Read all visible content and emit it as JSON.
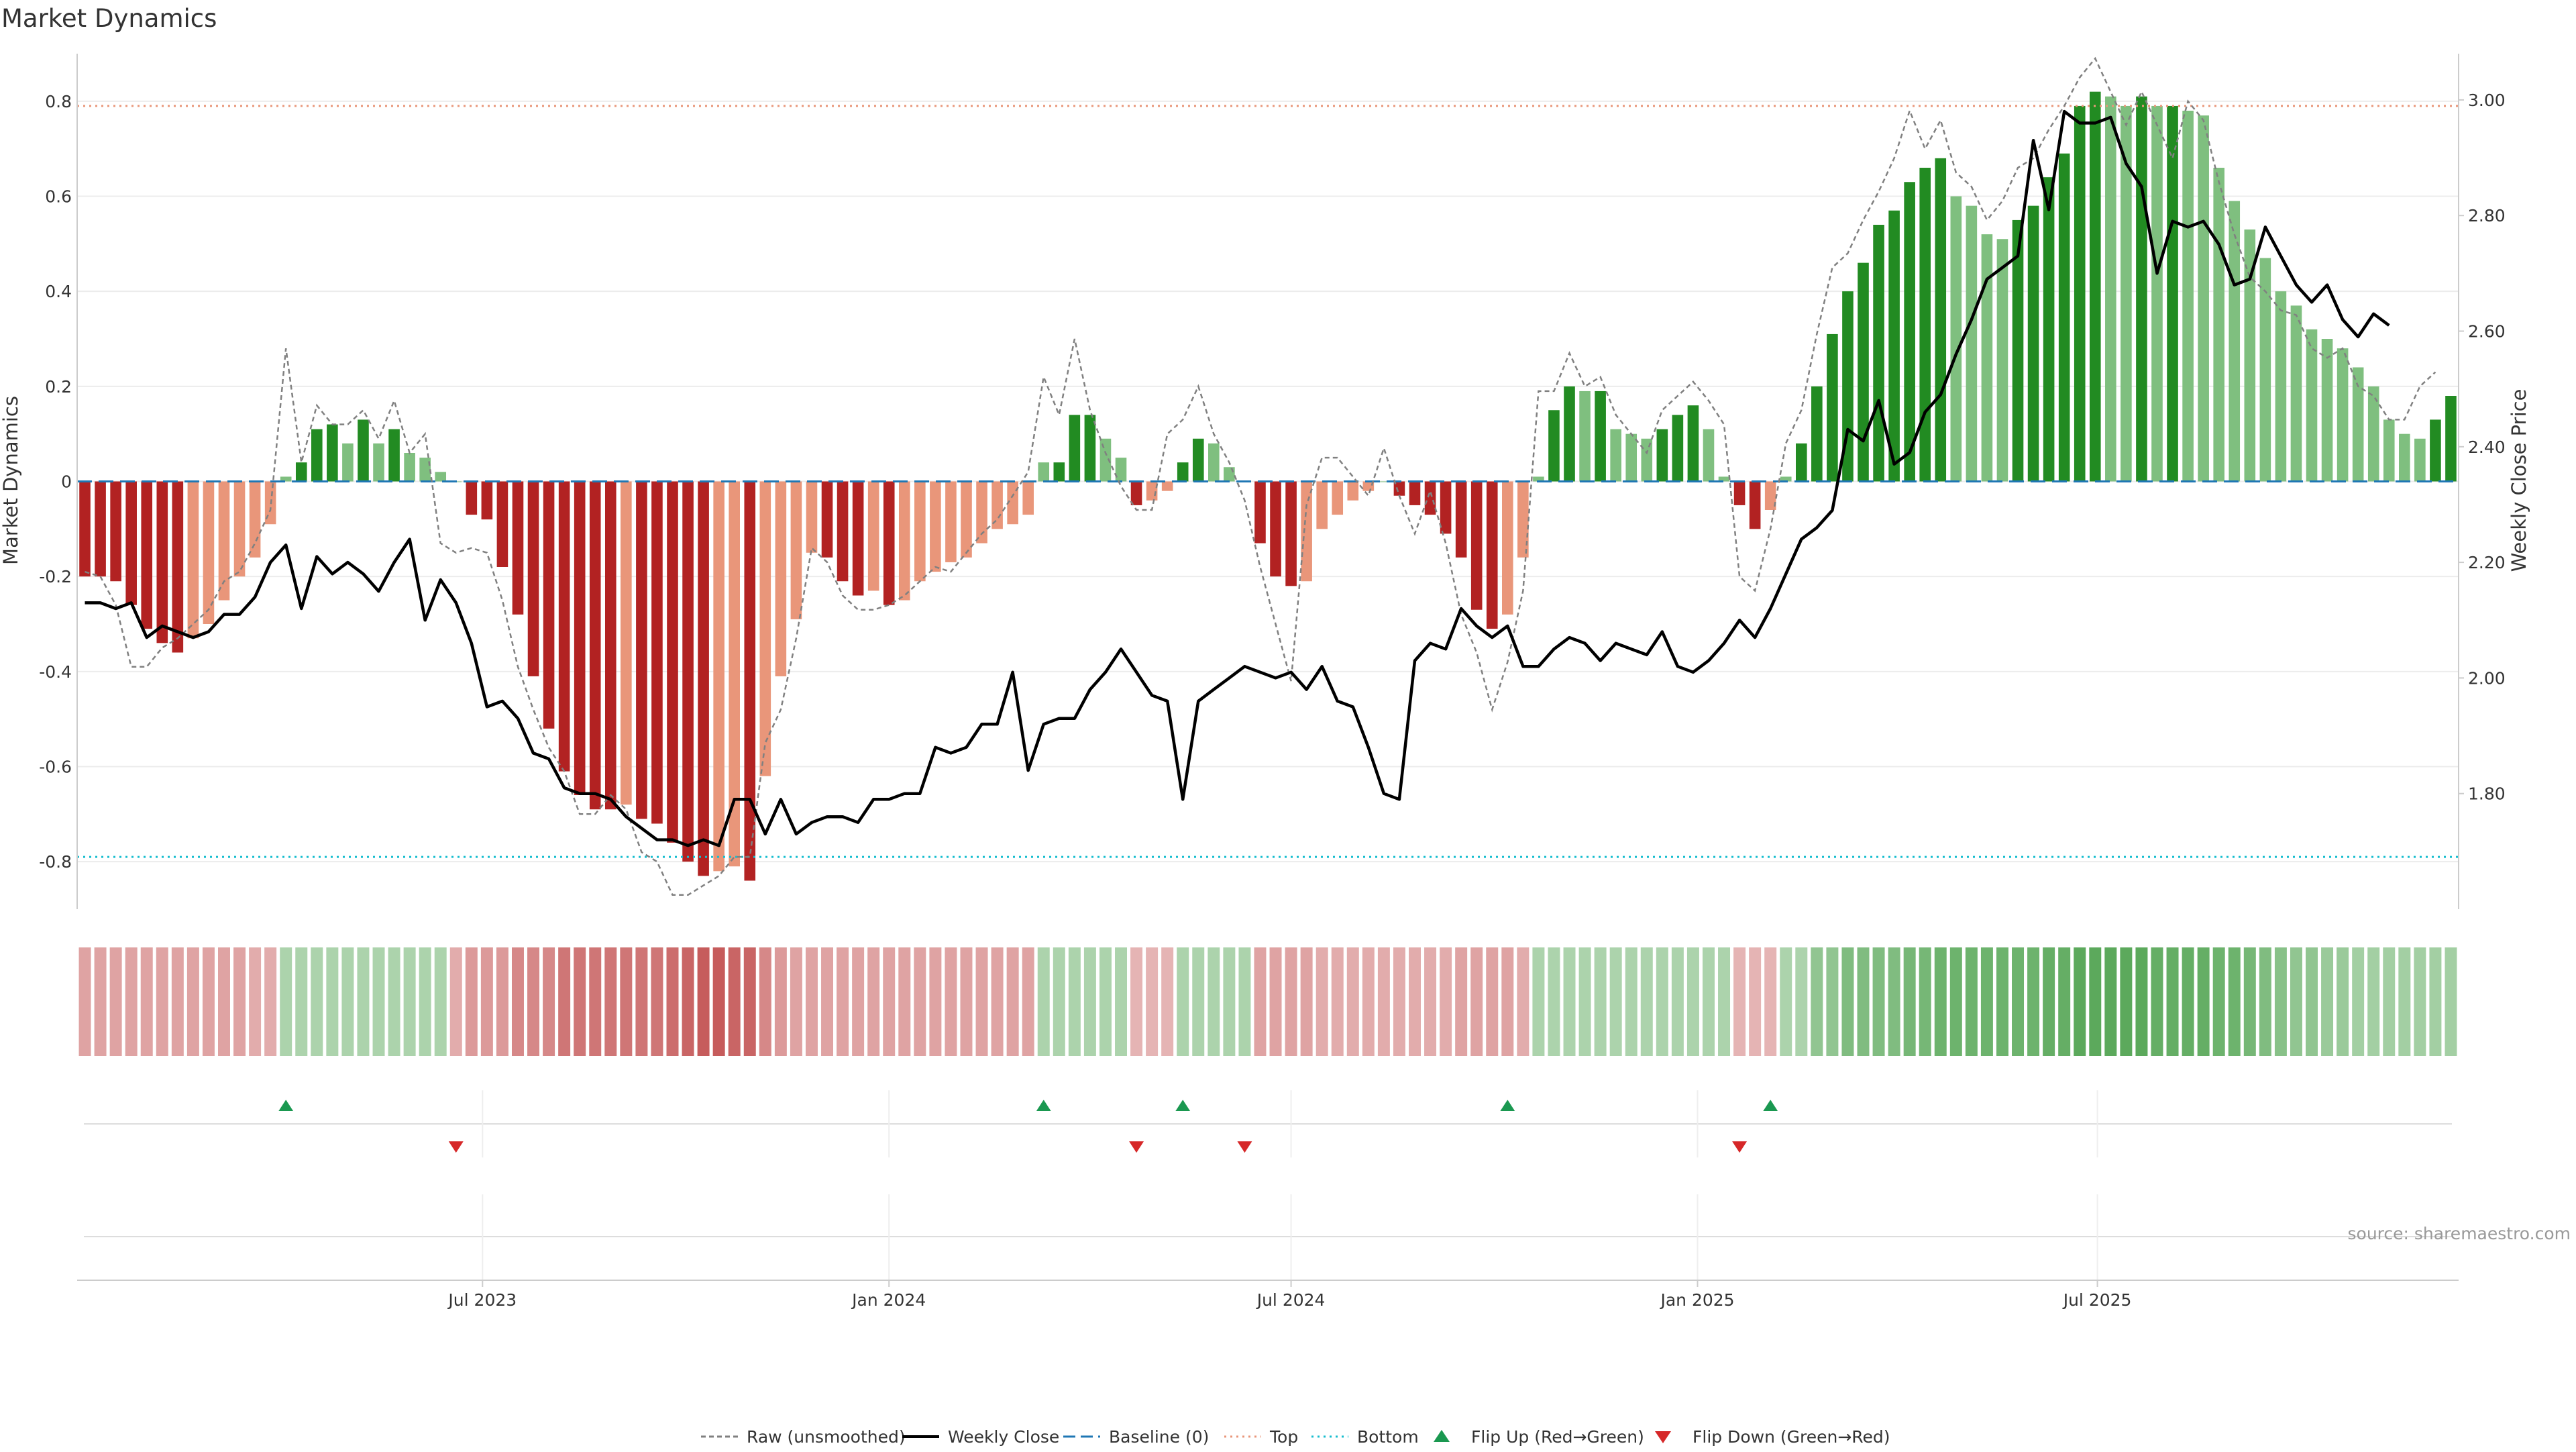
{
  "title": "Market Dynamics",
  "source_note": "source: sharemaestro.com",
  "left_axis_label": "Market Dynamics",
  "right_axis_label": "Weekly Close Price",
  "x_tick_labels": [
    "Jul 2023",
    "Jan 2024",
    "Jul 2024",
    "Jan 2025",
    "Jul 2025"
  ],
  "legend": [
    {
      "key": "raw",
      "label": "Raw (unsmoothed)"
    },
    {
      "key": "close",
      "label": "Weekly Close"
    },
    {
      "key": "baseline",
      "label": "Baseline (0)"
    },
    {
      "key": "top",
      "label": "Top"
    },
    {
      "key": "bottom",
      "label": "Bottom"
    },
    {
      "key": "flip_up",
      "label": "Flip Up (Red→Green)"
    },
    {
      "key": "flip_down",
      "label": "Flip Down (Green→Red)"
    }
  ],
  "colors": {
    "strong_green": "#228b22",
    "light_green": "#7fbf7f",
    "strong_red": "#b22222",
    "light_red": "#e9967a",
    "close_line": "#000000",
    "raw_line": "#808080",
    "baseline": "#1f77b4",
    "top": "#e9967a",
    "bottom": "#17becf",
    "flip_up": "#1a9850",
    "flip_down": "#d62728"
  },
  "chart_data": {
    "type": "bar",
    "x_start": "2023-01-02",
    "x_interval": "weekly",
    "ylim_left": [
      -0.9,
      0.9
    ],
    "left_ticks": [
      -0.8,
      -0.6,
      -0.4,
      -0.2,
      0,
      0.2,
      0.4,
      0.6,
      0.8
    ],
    "ylim_right": [
      1.6,
      3.08
    ],
    "right_ticks": [
      1.8,
      2.0,
      2.2,
      2.4,
      2.6,
      2.8,
      3.0
    ],
    "top_level": 0.79,
    "bottom_level": -0.79,
    "baseline": 0,
    "series": [
      {
        "name": "Market Dynamics",
        "values": [
          -0.2,
          -0.2,
          -0.21,
          -0.26,
          -0.31,
          -0.34,
          -0.36,
          -0.33,
          -0.3,
          -0.25,
          -0.2,
          -0.16,
          -0.09,
          0.01,
          0.04,
          0.11,
          0.12,
          0.08,
          0.13,
          0.08,
          0.11,
          0.06,
          0.05,
          0.02,
          0,
          -0.07,
          -0.08,
          -0.18,
          -0.28,
          -0.41,
          -0.52,
          -0.61,
          -0.66,
          -0.69,
          -0.69,
          -0.68,
          -0.71,
          -0.72,
          -0.76,
          -0.8,
          -0.83,
          -0.82,
          -0.81,
          -0.84,
          -0.62,
          -0.41,
          -0.29,
          -0.15,
          -0.16,
          -0.21,
          -0.24,
          -0.23,
          -0.26,
          -0.25,
          -0.21,
          -0.19,
          -0.17,
          -0.16,
          -0.13,
          -0.1,
          -0.09,
          -0.07,
          0.04,
          0.04,
          0.14,
          0.14,
          0.09,
          0.05,
          -0.05,
          -0.04,
          -0.02,
          0.04,
          0.09,
          0.08,
          0.03,
          0,
          -0.13,
          -0.2,
          -0.22,
          -0.21,
          -0.1,
          -0.07,
          -0.04,
          -0.02,
          0,
          -0.03,
          -0.05,
          -0.07,
          -0.11,
          -0.16,
          -0.27,
          -0.31,
          -0.28,
          -0.16,
          0.01,
          0.15,
          0.2,
          0.19,
          0.19,
          0.11,
          0.1,
          0.09,
          0.11,
          0.14,
          0.16,
          0.11,
          0.01,
          -0.05,
          -0.1,
          -0.06,
          0.01,
          0.08,
          0.2,
          0.31,
          0.4,
          0.46,
          0.54,
          0.57,
          0.63,
          0.66,
          0.68,
          0.6,
          0.58,
          0.52,
          0.51,
          0.55,
          0.58,
          0.64,
          0.69,
          0.79,
          0.82,
          0.81,
          0.79,
          0.81,
          0.79,
          0.79,
          0.78,
          0.77,
          0.66,
          0.59,
          0.53,
          0.47,
          0.4,
          0.37,
          0.32,
          0.3,
          0.28,
          0.24,
          0.2,
          0.13,
          0.1,
          0.09,
          0.13,
          0.18
        ]
      },
      {
        "name": "Raw (unsmoothed)",
        "values": [
          -0.19,
          -0.2,
          -0.26,
          -0.39,
          -0.39,
          -0.35,
          -0.33,
          -0.3,
          -0.27,
          -0.21,
          -0.19,
          -0.13,
          -0.06,
          0.28,
          0.04,
          0.16,
          0.12,
          0.12,
          0.15,
          0.09,
          0.17,
          0.06,
          0.1,
          -0.13,
          -0.15,
          -0.14,
          -0.15,
          -0.25,
          -0.39,
          -0.48,
          -0.56,
          -0.61,
          -0.7,
          -0.7,
          -0.66,
          -0.69,
          -0.78,
          -0.8,
          -0.87,
          -0.87,
          -0.85,
          -0.83,
          -0.79,
          -0.79,
          -0.55,
          -0.48,
          -0.33,
          -0.14,
          -0.17,
          -0.24,
          -0.27,
          -0.27,
          -0.26,
          -0.24,
          -0.21,
          -0.18,
          -0.19,
          -0.15,
          -0.11,
          -0.08,
          -0.03,
          0.02,
          0.22,
          0.14,
          0.3,
          0.15,
          0.06,
          -0.01,
          -0.06,
          -0.06,
          0.1,
          0.13,
          0.2,
          0.1,
          0.04,
          -0.04,
          -0.18,
          -0.3,
          -0.42,
          -0.05,
          0.05,
          0.05,
          0.01,
          -0.03,
          0.07,
          -0.03,
          -0.11,
          -0.02,
          -0.13,
          -0.28,
          -0.36,
          -0.48,
          -0.38,
          -0.23,
          0.19,
          0.19,
          0.27,
          0.2,
          0.22,
          0.14,
          0.1,
          0.06,
          0.15,
          0.18,
          0.21,
          0.17,
          0.12,
          -0.2,
          -0.23,
          -0.1,
          0.08,
          0.15,
          0.31,
          0.45,
          0.48,
          0.55,
          0.61,
          0.68,
          0.78,
          0.7,
          0.76,
          0.65,
          0.62,
          0.55,
          0.59,
          0.66,
          0.68,
          0.74,
          0.79,
          0.85,
          0.89,
          0.82,
          0.75,
          0.82,
          0.75,
          0.68,
          0.8,
          0.76,
          0.63,
          0.52,
          0.43,
          0.4,
          0.36,
          0.35,
          0.28,
          0.26,
          0.28,
          0.2,
          0.18,
          0.13,
          0.13,
          0.2,
          0.23
        ]
      },
      {
        "name": "Weekly Close",
        "values": [
          2.13,
          2.13,
          2.12,
          2.13,
          2.07,
          2.09,
          2.08,
          2.07,
          2.08,
          2.11,
          2.11,
          2.14,
          2.2,
          2.23,
          2.12,
          2.21,
          2.18,
          2.2,
          2.18,
          2.15,
          2.2,
          2.24,
          2.1,
          2.17,
          2.13,
          2.06,
          1.95,
          1.96,
          1.93,
          1.87,
          1.86,
          1.81,
          1.8,
          1.8,
          1.79,
          1.76,
          1.74,
          1.72,
          1.72,
          1.71,
          1.72,
          1.71,
          1.79,
          1.79,
          1.73,
          1.79,
          1.73,
          1.75,
          1.76,
          1.76,
          1.75,
          1.79,
          1.79,
          1.8,
          1.8,
          1.88,
          1.87,
          1.88,
          1.92,
          1.92,
          2.01,
          1.84,
          1.92,
          1.93,
          1.93,
          1.98,
          2.01,
          2.05,
          2.01,
          1.97,
          1.96,
          1.79,
          1.96,
          1.98,
          2.0,
          2.02,
          2.01,
          2.0,
          2.01,
          1.98,
          2.02,
          1.96,
          1.95,
          1.88,
          1.8,
          1.79,
          2.03,
          2.06,
          2.05,
          2.12,
          2.09,
          2.07,
          2.09,
          2.02,
          2.02,
          2.05,
          2.07,
          2.06,
          2.03,
          2.06,
          2.05,
          2.04,
          2.08,
          2.02,
          2.01,
          2.03,
          2.06,
          2.1,
          2.07,
          2.12,
          2.18,
          2.24,
          2.26,
          2.29,
          2.43,
          2.41,
          2.48,
          2.37,
          2.39,
          2.46,
          2.49,
          2.56,
          2.62,
          2.69,
          2.71,
          2.73,
          2.93,
          2.81,
          2.98,
          2.96,
          2.96,
          2.97,
          2.89,
          2.85,
          2.7,
          2.79,
          2.78,
          2.79,
          2.75,
          2.68,
          2.69,
          2.78,
          2.73,
          2.68,
          2.65,
          2.68,
          2.62,
          2.59,
          2.63,
          2.61
        ]
      },
      {
        "name": "Regime Strip",
        "values": [
          -0.2,
          -0.2,
          -0.2,
          -0.2,
          -0.2,
          -0.2,
          -0.2,
          -0.2,
          -0.2,
          -0.2,
          -0.2,
          -0.15,
          -0.15,
          0.15,
          0.15,
          0.15,
          0.15,
          0.15,
          0.15,
          0.15,
          0.15,
          0.15,
          0.15,
          0.15,
          -0.15,
          -0.25,
          -0.25,
          -0.25,
          -0.35,
          -0.35,
          -0.35,
          -0.45,
          -0.45,
          -0.45,
          -0.45,
          -0.45,
          -0.45,
          -0.45,
          -0.5,
          -0.55,
          -0.6,
          -0.6,
          -0.55,
          -0.55,
          -0.35,
          -0.25,
          -0.2,
          -0.2,
          -0.2,
          -0.2,
          -0.2,
          -0.2,
          -0.2,
          -0.2,
          -0.2,
          -0.2,
          -0.2,
          -0.2,
          -0.2,
          -0.2,
          -0.2,
          -0.2,
          0.15,
          0.15,
          0.15,
          0.15,
          0.15,
          0.15,
          -0.1,
          -0.1,
          -0.1,
          0.15,
          0.15,
          0.15,
          0.15,
          0.15,
          -0.2,
          -0.2,
          -0.2,
          -0.2,
          -0.15,
          -0.15,
          -0.15,
          -0.15,
          -0.15,
          -0.15,
          -0.15,
          -0.15,
          -0.15,
          -0.2,
          -0.2,
          -0.2,
          -0.2,
          -0.15,
          0.15,
          0.15,
          0.15,
          0.15,
          0.15,
          0.15,
          0.15,
          0.15,
          0.15,
          0.15,
          0.15,
          0.15,
          0.15,
          -0.1,
          -0.1,
          -0.1,
          0.15,
          0.15,
          0.3,
          0.3,
          0.4,
          0.4,
          0.4,
          0.4,
          0.45,
          0.45,
          0.5,
          0.5,
          0.5,
          0.5,
          0.5,
          0.5,
          0.5,
          0.55,
          0.55,
          0.6,
          0.6,
          0.6,
          0.6,
          0.6,
          0.55,
          0.55,
          0.55,
          0.55,
          0.5,
          0.5,
          0.45,
          0.4,
          0.35,
          0.3,
          0.3,
          0.25,
          0.25,
          0.2,
          0.2,
          0.2,
          0.2,
          0.2,
          0.2,
          0.2
        ]
      }
    ],
    "flip_up_weeks": [
      13,
      62,
      71,
      92,
      109
    ],
    "flip_down_weeks": [
      24,
      68,
      75,
      107
    ]
  }
}
